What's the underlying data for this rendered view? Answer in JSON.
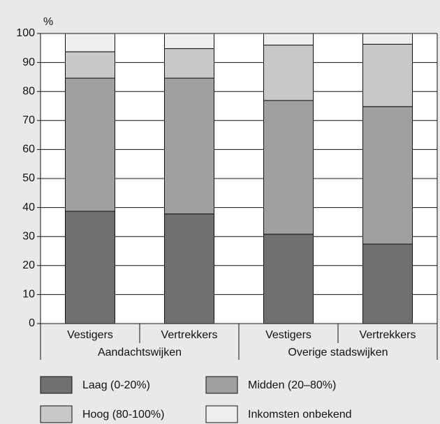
{
  "chart_data": {
    "type": "stacked_bar",
    "ylabel": "%",
    "categories": [
      "Vestigers",
      "Vertrekkers",
      "Vestigers",
      "Vertrekkers"
    ],
    "groups": [
      "Aandachtswijken",
      "Overige stadswijken"
    ],
    "series": [
      {
        "name": "Laag (0-20%)",
        "color": "#707070",
        "values": [
          38.7,
          37.8,
          30.8,
          27.4
        ]
      },
      {
        "name": "Midden (20–80%)",
        "color": "#a0a0a0",
        "values": [
          45.9,
          46.8,
          46.1,
          47.4
        ]
      },
      {
        "name": "Hoog (80-100%)",
        "color": "#c8c8c8",
        "values": [
          9.1,
          10.2,
          19.1,
          21.5
        ]
      },
      {
        "name": "Inkomsten onbekend",
        "color": "#eeeeee",
        "values": [
          6.3,
          5.2,
          4.0,
          3.7
        ]
      }
    ],
    "ylim": [
      0,
      100
    ],
    "yticks": [
      0,
      10,
      20,
      30,
      40,
      50,
      60,
      70,
      80,
      90,
      100
    ],
    "grid": true
  }
}
